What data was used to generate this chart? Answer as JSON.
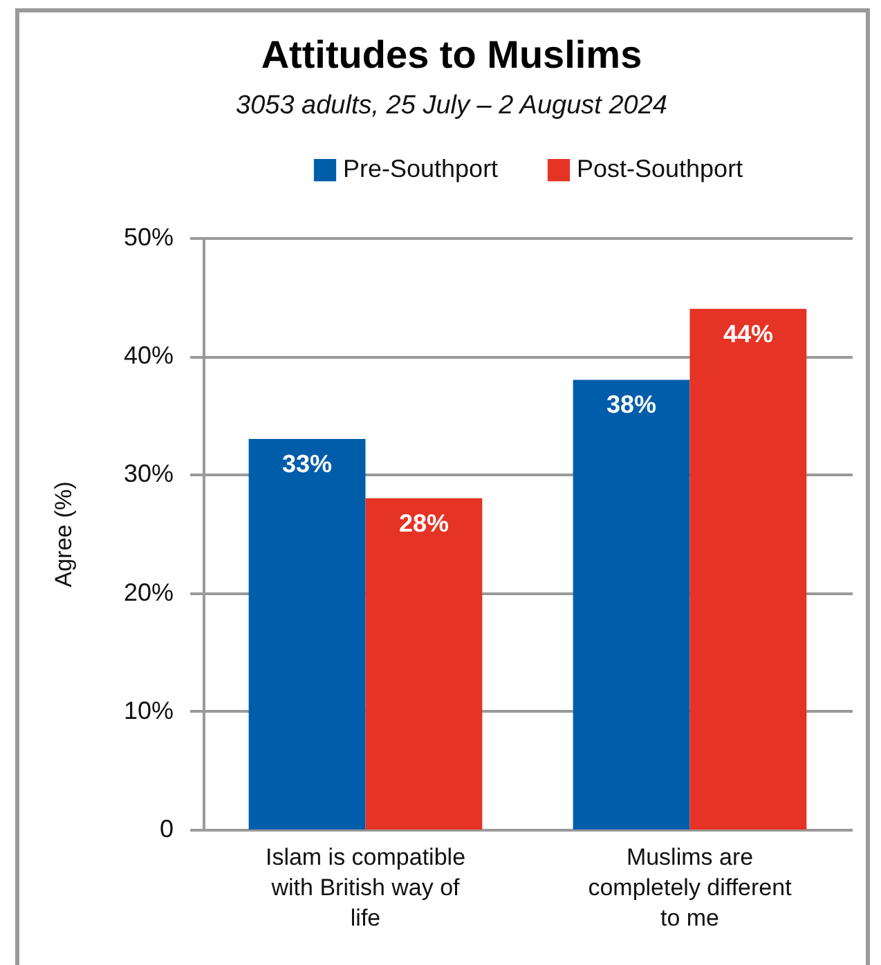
{
  "chart_data": {
    "type": "bar",
    "title": "Attitudes to Muslims",
    "subtitle": "3053 adults, 25 July – 2 August 2024",
    "ylabel": "Agree (%)",
    "categories": [
      "Islam is compatible with British way of life",
      "Muslims are completely different to me"
    ],
    "series": [
      {
        "name": "Pre-Southport",
        "color": "#005daa",
        "values": [
          33,
          38
        ],
        "value_labels": [
          "33%",
          "38%"
        ]
      },
      {
        "name": "Post-Southport",
        "color": "#e53325",
        "values": [
          28,
          44
        ],
        "value_labels": [
          "28%",
          "44%"
        ]
      }
    ],
    "ylim": [
      0,
      50
    ],
    "yticks": [
      0,
      {
        "value": 10,
        "label": "10%"
      },
      {
        "value": 20,
        "label": "20%"
      },
      {
        "value": 30,
        "label": "30%"
      },
      {
        "value": 40,
        "label": "40%"
      },
      {
        "value": 50,
        "label": "50%"
      }
    ],
    "grid": "y",
    "legend": "top"
  }
}
